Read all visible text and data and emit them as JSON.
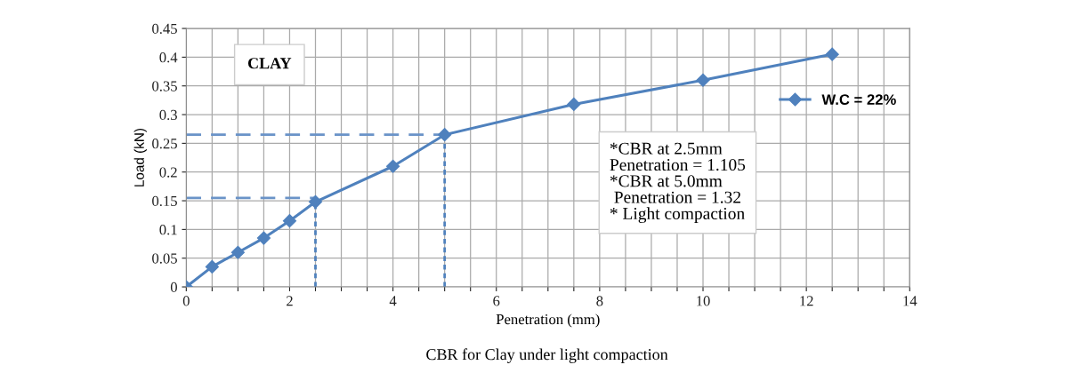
{
  "chart_data": {
    "type": "line",
    "xlabel": "Penetration (mm)",
    "ylabel": "Load (kN)",
    "annotations": [
      "CLAY",
      "*CBR at 2.5mm\nPenetration = 1.105\n*CBR at 5.0mm\n Penetration = 1.32\n* Light compaction",
      "CBR for Clay under light compaction"
    ],
    "x": [
      0,
      0.5,
      1,
      1.5,
      2,
      2.5,
      4,
      5,
      7.5,
      10,
      12.5
    ],
    "series": [
      {
        "name": "W.C = 22%",
        "color": "#4f81bd",
        "values": [
          0,
          0.035,
          0.06,
          0.085,
          0.115,
          0.148,
          0.21,
          0.265,
          0.318,
          0.36,
          0.405
        ],
        "marker": "diamond",
        "line_style": "solid"
      },
      {
        "color": "#6a93c8",
        "x": [
          0,
          2.5
        ],
        "values": [
          0.155,
          0.155
        ],
        "marker": "none",
        "line_style": "dashed"
      },
      {
        "color": "#6a93c8",
        "x": [
          0,
          5
        ],
        "values": [
          0.265,
          0.265
        ],
        "marker": "none",
        "line_style": "dashed"
      },
      {
        "color": "#4f81bd",
        "x": [
          2.5,
          2.5
        ],
        "values": [
          0,
          0.148
        ],
        "marker": "none",
        "line_style": "dotted"
      },
      {
        "color": "#4f81bd",
        "x": [
          5,
          5
        ],
        "values": [
          0,
          0.265
        ],
        "marker": "none",
        "line_style": "dotted"
      }
    ],
    "xlim": [
      0,
      14
    ],
    "xticks": [
      0,
      {
        "value": 0.5,
        "label": null
      },
      2,
      {
        "value": 1,
        "label": null
      },
      {
        "value": 1.5,
        "label": null
      },
      {
        "value": 2.5,
        "label": null
      },
      {
        "value": 3,
        "label": null
      },
      {
        "value": 3.5,
        "label": null
      },
      4,
      {
        "value": 4.5,
        "label": null
      },
      {
        "value": 5,
        "label": null
      },
      {
        "value": 5.5,
        "label": null
      },
      6,
      {
        "value": 6.5,
        "label": null
      },
      {
        "value": 7,
        "label": null
      },
      {
        "value": 7.5,
        "label": null
      },
      8,
      {
        "value": 8.5,
        "label": null
      },
      {
        "value": 9,
        "label": null
      },
      {
        "value": 9.5,
        "label": null
      },
      10,
      {
        "value": 10.5,
        "label": null
      },
      {
        "value": 11,
        "label": null
      },
      {
        "value": 11.5,
        "label": null
      },
      12,
      {
        "value": 12.5,
        "label": null
      },
      {
        "value": 13,
        "label": null
      },
      {
        "value": 13.5,
        "label": null
      },
      14
    ],
    "ylim": [
      0,
      0.45
    ],
    "yticks": [
      0,
      0.05,
      0.1,
      0.15,
      0.2,
      0.25,
      0.3,
      0.35,
      0.4,
      0.45
    ],
    "grid": true,
    "legend": "right"
  }
}
